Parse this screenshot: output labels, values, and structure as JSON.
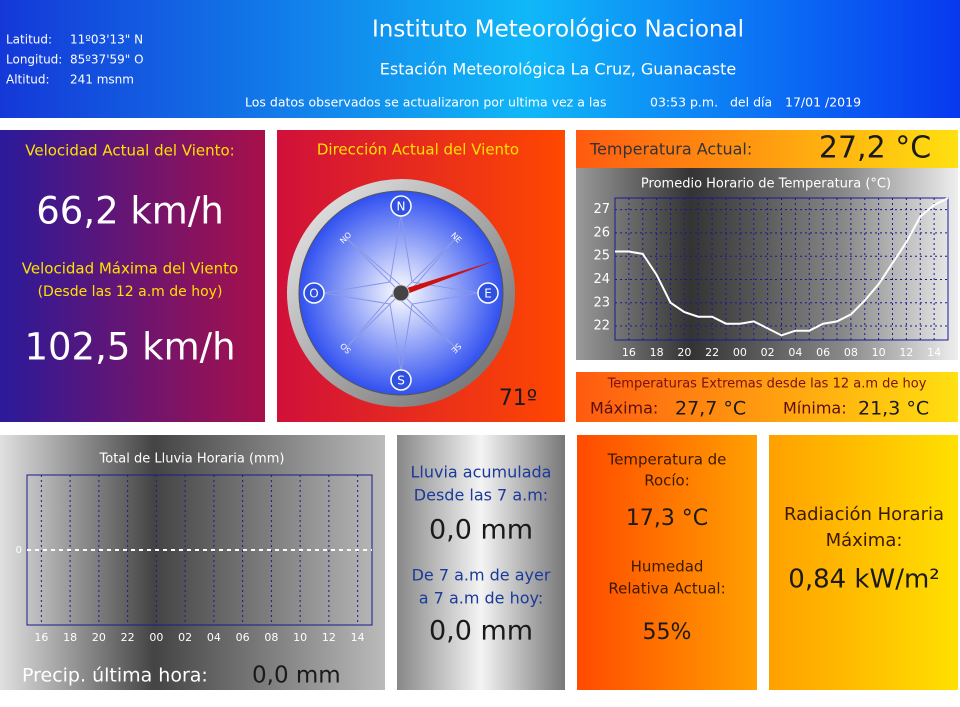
{
  "header": {
    "lat_label": "Latitud:",
    "lat": "11º03'13\" N",
    "lon_label": "Longitud:",
    "lon": "85º37'59\" O",
    "alt_label": "Altitud:",
    "alt": "241 msnm",
    "title": "Instituto Meteorológico Nacional",
    "subtitle": "Estación Meteorológica La Cruz, Guanacaste",
    "update_text": "Los datos observados se actualizaron por ultima vez a las",
    "time": "03:53 p.m.",
    "day_label": "del día",
    "date": "17/01 /2019"
  },
  "wind": {
    "current_label": "Velocidad Actual del Viento:",
    "current": "66,2 km/h",
    "max_label": "Velocidad Máxima del Viento",
    "max_note": "(Desde las 12 a.m de hoy)",
    "max": "102,5 km/h"
  },
  "direction": {
    "title": "Dirección Actual del Viento",
    "value": 71,
    "value_label": "71º",
    "compass": {
      "n": "N",
      "e": "E",
      "s": "S",
      "o": "O",
      "ne": "NE",
      "se": "SE",
      "so": "SO",
      "no": "NO"
    }
  },
  "temperature": {
    "label": "Temperatura Actual:",
    "value": "27,2 °C"
  },
  "chart_data": [
    {
      "type": "line",
      "title": "Promedio Horario de Temperatura (°C)",
      "categories": [
        null,
        "16",
        null,
        "18",
        null,
        "20",
        null,
        "22",
        null,
        "00",
        null,
        "02",
        null,
        "04",
        null,
        "06",
        null,
        "08",
        null,
        "10",
        null,
        "12",
        null,
        "14",
        null
      ],
      "values": [
        25.2,
        25.2,
        25.1,
        24.2,
        23.0,
        22.6,
        22.4,
        22.4,
        22.1,
        22.1,
        22.2,
        21.9,
        21.6,
        21.8,
        21.8,
        22.1,
        22.2,
        22.5,
        23.1,
        23.8,
        24.7,
        25.6,
        26.7,
        27.2,
        27.5
      ],
      "color": "#ffffff",
      "ylim": [
        21.4,
        27.5
      ],
      "yticks": [
        22,
        23,
        24,
        25,
        26,
        27
      ],
      "grid": true
    },
    {
      "type": "line",
      "title": "Total de Lluvia Horaria (mm)",
      "categories": [
        null,
        "16",
        null,
        "18",
        null,
        "20",
        null,
        "22",
        null,
        "00",
        null,
        "02",
        null,
        "04",
        null,
        "06",
        null,
        "08",
        null,
        "10",
        null,
        "12",
        null,
        "14",
        null
      ],
      "values": [
        0,
        0,
        0,
        0,
        0,
        0,
        0,
        0,
        0,
        0,
        0,
        0,
        0,
        0,
        0,
        0,
        0,
        0,
        0,
        0,
        0,
        0,
        0,
        0,
        0
      ],
      "color": "#ffffff",
      "ylim": [
        -1,
        1
      ],
      "yticks": [
        0
      ],
      "grid": true
    }
  ],
  "extremes": {
    "title": "Temperaturas Extremas desde las 12 a.m de hoy",
    "max_label": "Máxima:",
    "max": "27,7 °C",
    "min_label": "Mínima:",
    "min": "21,3 °C"
  },
  "rain": {
    "last_hour_label": "Precip. última hora:",
    "last_hour": "0,0 mm"
  },
  "accumulated": {
    "label1a": "Lluvia acumulada",
    "label1b": "Desde las 7 a.m:",
    "value1": "0,0 mm",
    "label2a": "De 7 a.m de ayer",
    "label2b": "a 7 a.m de hoy:",
    "value2": "0,0 mm"
  },
  "dew": {
    "label_a": "Temperatura de",
    "label_b": "Rocío:",
    "value": "17,3 °C",
    "hum_a": "Humedad",
    "hum_b": "Relativa Actual:",
    "hum": "55%"
  },
  "radiation": {
    "label_a": "Radiación Horaria",
    "label_b": "Máxima:",
    "value": "0,84 kW/m²"
  }
}
